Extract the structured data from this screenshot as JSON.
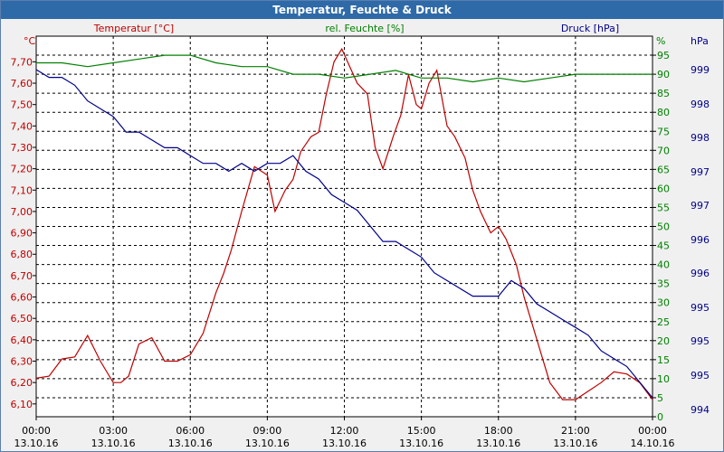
{
  "window": {
    "title": "Temperatur, Feuchte & Druck"
  },
  "colors": {
    "temperature": "#c00000",
    "humidity": "#008000",
    "pressure": "#00008b",
    "grid": "#000000",
    "background": "#ffffff"
  },
  "chart_data": {
    "type": "line",
    "title": "Temperatur, Feuchte & Druck",
    "grid": true,
    "x_ticks": [
      {
        "time": "00:00",
        "date": "13.10.16"
      },
      {
        "time": "03:00",
        "date": "13.10.16"
      },
      {
        "time": "06:00",
        "date": "13.10.16"
      },
      {
        "time": "09:00",
        "date": "13.10.16"
      },
      {
        "time": "12:00",
        "date": "13.10.16"
      },
      {
        "time": "15:00",
        "date": "13.10.16"
      },
      {
        "time": "18:00",
        "date": "13.10.16"
      },
      {
        "time": "21:00",
        "date": "13.10.16"
      },
      {
        "time": "00:00",
        "date": "14.10.16"
      }
    ],
    "x_unit_hours": [
      0,
      24
    ],
    "axes": {
      "temperature": {
        "label": "Temperatur [°C]",
        "unit": "°C",
        "ylim": [
          6.04,
          7.82
        ],
        "ticks": [
          "6,10",
          "6,20",
          "6,30",
          "6,40",
          "6,50",
          "6,60",
          "6,70",
          "6,80",
          "6,90",
          "7,00",
          "7,10",
          "7,20",
          "7,30",
          "7,40",
          "7,50",
          "7,60",
          "7,70"
        ]
      },
      "humidity": {
        "label": "rel. Feuchte [%]",
        "unit": "%",
        "ylim": [
          0,
          100
        ],
        "ticks": [
          "0",
          "5",
          "10",
          "15",
          "20",
          "25",
          "30",
          "35",
          "40",
          "45",
          "50",
          "55",
          "60",
          "65",
          "70",
          "75",
          "80",
          "85",
          "90",
          "95"
        ]
      },
      "pressure": {
        "label": "Druck [hPa]",
        "unit": "hPa",
        "ticks": [
          "994",
          "995",
          "995",
          "995",
          "996",
          "996",
          "997",
          "997",
          "998",
          "998",
          "999",
          "999",
          "999"
        ]
      }
    },
    "series": [
      {
        "name": "Temperatur [°C]",
        "axis": "temperature",
        "x": [
          0,
          0.5,
          1,
          1.5,
          2,
          2.5,
          3,
          3.3,
          3.6,
          4,
          4.5,
          5,
          5.5,
          6,
          6.5,
          7,
          7.3,
          7.6,
          8,
          8.5,
          9,
          9.3,
          9.7,
          10,
          10.3,
          10.7,
          11,
          11.3,
          11.6,
          11.9,
          12.2,
          12.5,
          12.9,
          13.2,
          13.5,
          13.9,
          14.2,
          14.5,
          14.8,
          15,
          15.3,
          15.6,
          16,
          16.3,
          16.7,
          17,
          17.3,
          17.7,
          18,
          18.3,
          18.7,
          19,
          19.5,
          20,
          20.5,
          21,
          21.5,
          22,
          22.5,
          23,
          23.5,
          24
        ],
        "values": [
          6.22,
          6.23,
          6.31,
          6.32,
          6.42,
          6.3,
          6.2,
          6.2,
          6.23,
          6.38,
          6.41,
          6.3,
          6.3,
          6.33,
          6.43,
          6.62,
          6.71,
          6.82,
          7.0,
          7.21,
          7.17,
          7.0,
          7.1,
          7.15,
          7.28,
          7.35,
          7.37,
          7.55,
          7.7,
          7.76,
          7.68,
          7.6,
          7.55,
          7.3,
          7.2,
          7.35,
          7.45,
          7.64,
          7.5,
          7.48,
          7.6,
          7.66,
          7.4,
          7.35,
          7.25,
          7.1,
          7.0,
          6.9,
          6.93,
          6.87,
          6.75,
          6.6,
          6.4,
          6.2,
          6.12,
          6.12,
          6.16,
          6.2,
          6.25,
          6.24,
          6.2,
          6.12
        ]
      },
      {
        "name": "rel. Feuchte [%]",
        "axis": "humidity",
        "x": [
          0,
          1,
          2,
          3,
          4,
          5,
          6,
          7,
          8,
          9,
          10,
          11,
          12,
          13,
          14,
          15,
          16,
          17,
          18,
          19,
          20,
          21,
          22,
          23,
          24
        ],
        "values": [
          93,
          93,
          92,
          93,
          94,
          95,
          95,
          93,
          92,
          92,
          90,
          90,
          89,
          90,
          91,
          89,
          89,
          88,
          89,
          88,
          89,
          90,
          90,
          90,
          90
        ]
      },
      {
        "name": "Druck [hPa]",
        "axis": "pressure",
        "x": [
          0,
          0.5,
          1,
          1.5,
          2,
          2.5,
          3,
          3.5,
          4,
          4.5,
          5,
          5.5,
          6,
          6.5,
          7,
          7.5,
          8,
          8.5,
          9,
          9.5,
          10,
          10.5,
          11,
          11.5,
          12,
          12.5,
          13,
          13.5,
          14,
          14.5,
          15,
          15.5,
          16,
          16.5,
          17,
          17.5,
          18,
          18.5,
          19,
          19.5,
          20,
          20.5,
          21,
          21.5,
          22,
          22.5,
          23,
          23.5,
          24
        ],
        "values": [
          999.0,
          998.9,
          998.9,
          998.8,
          998.6,
          998.5,
          998.4,
          998.2,
          998.2,
          998.1,
          998.0,
          998.0,
          997.9,
          997.8,
          997.8,
          997.7,
          997.8,
          997.7,
          997.8,
          997.8,
          997.9,
          997.7,
          997.6,
          997.4,
          997.3,
          997.2,
          997.0,
          996.8,
          996.8,
          996.7,
          996.6,
          996.4,
          996.3,
          996.2,
          996.1,
          996.1,
          996.1,
          996.3,
          996.2,
          996.0,
          995.9,
          995.8,
          995.7,
          995.6,
          995.4,
          995.3,
          995.2,
          995.0,
          994.8
        ]
      }
    ]
  }
}
